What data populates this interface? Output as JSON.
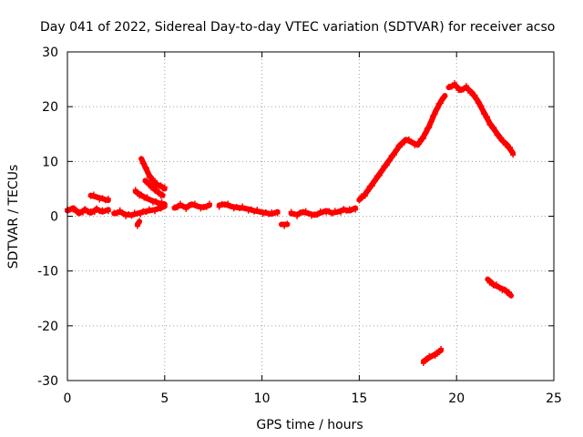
{
  "chart_data": {
    "type": "scatter",
    "title": "Day 041 of 2022, Sidereal Day-to-day VTEC variation (SDTVAR) for receiver acso",
    "xlabel": "GPS time / hours",
    "ylabel": "SDTVAR / TECUs",
    "xlim": [
      0,
      25
    ],
    "ylim": [
      -30,
      30
    ],
    "grid": true,
    "x_ticks": [
      0,
      5,
      10,
      15,
      20,
      25
    ],
    "y_ticks": [
      -30,
      -20,
      -10,
      0,
      10,
      20,
      30
    ],
    "x_tick_labels": [
      "0",
      "5",
      "10",
      "15",
      "20",
      "25"
    ],
    "y_tick_labels": [
      "-30",
      "-20",
      "-10",
      "0",
      "10",
      "20",
      "30"
    ],
    "series": [
      {
        "name": "SDTVAR",
        "color": "#ff0000",
        "marker": "plus",
        "segments": [
          {
            "x": [
              0.0,
              0.3,
              0.6,
              0.9,
              1.2,
              1.5,
              1.8,
              2.1
            ],
            "y": [
              1.0,
              1.5,
              0.5,
              1.2,
              0.6,
              1.3,
              0.8,
              1.2
            ]
          },
          {
            "x": [
              1.2,
              1.5,
              1.8,
              2.1
            ],
            "y": [
              3.8,
              3.5,
              3.2,
              2.9
            ]
          },
          {
            "x": [
              2.4,
              2.7,
              3.0,
              3.3,
              3.6,
              3.9,
              4.2,
              4.5,
              4.8,
              5.0
            ],
            "y": [
              0.5,
              0.8,
              0.3,
              0.2,
              0.5,
              0.8,
              1.0,
              1.2,
              1.5,
              1.8
            ]
          },
          {
            "x": [
              3.6,
              3.7
            ],
            "y": [
              -1.5,
              -1.0
            ]
          },
          {
            "x": [
              3.8,
              4.0,
              4.2,
              4.4,
              4.6,
              4.8,
              5.0
            ],
            "y": [
              10.5,
              9.0,
              7.5,
              6.5,
              5.8,
              5.5,
              5.0
            ]
          },
          {
            "x": [
              3.5,
              3.8,
              4.1,
              4.4,
              4.7,
              5.0
            ],
            "y": [
              4.5,
              3.8,
              3.2,
              2.8,
              2.4,
              2.2
            ]
          },
          {
            "x": [
              4.0,
              4.3,
              4.6,
              4.9
            ],
            "y": [
              6.5,
              5.5,
              4.5,
              3.8
            ]
          },
          {
            "x": [
              5.5,
              5.8,
              6.1,
              6.4,
              6.7,
              7.0,
              7.3
            ],
            "y": [
              1.5,
              2.0,
              1.6,
              2.2,
              1.8,
              1.6,
              2.0
            ]
          },
          {
            "x": [
              7.8,
              8.1,
              8.4,
              8.7,
              9.0,
              9.3,
              9.6,
              9.9,
              10.2,
              10.5,
              10.8
            ],
            "y": [
              2.0,
              2.2,
              1.8,
              1.6,
              1.5,
              1.3,
              1.0,
              0.8,
              0.6,
              0.4,
              0.8
            ]
          },
          {
            "x": [
              11.0,
              11.3
            ],
            "y": [
              -1.5,
              -1.5
            ]
          },
          {
            "x": [
              11.5,
              11.8,
              12.1,
              12.4,
              12.7,
              13.0,
              13.3,
              13.6,
              13.9,
              14.2,
              14.5,
              14.8
            ],
            "y": [
              0.5,
              0.3,
              0.8,
              0.5,
              0.2,
              0.6,
              1.0,
              0.6,
              0.8,
              1.2,
              1.0,
              1.5
            ]
          },
          {
            "x": [
              15.0,
              15.3,
              15.6,
              15.9,
              16.2,
              16.5,
              16.8,
              17.1,
              17.4,
              17.7,
              18.0,
              18.3,
              18.6,
              18.9,
              19.2,
              19.4
            ],
            "y": [
              3.0,
              4.0,
              5.5,
              7.0,
              8.5,
              10.0,
              11.5,
              13.0,
              14.0,
              13.5,
              13.0,
              14.5,
              16.5,
              19.0,
              21.0,
              22.0
            ]
          },
          {
            "x": [
              19.6,
              19.9,
              20.2,
              20.5,
              20.8,
              21.1,
              21.4,
              21.7,
              22.0,
              22.3,
              22.6,
              22.9
            ],
            "y": [
              23.5,
              24.0,
              23.0,
              23.5,
              22.5,
              21.0,
              19.0,
              17.0,
              15.5,
              14.0,
              13.0,
              11.5
            ]
          },
          {
            "x": [
              18.3,
              18.6,
              18.9,
              19.2
            ],
            "y": [
              -26.5,
              -25.8,
              -25.2,
              -24.5
            ]
          },
          {
            "x": [
              21.6,
              21.9,
              22.2,
              22.5,
              22.8
            ],
            "y": [
              -11.5,
              -12.5,
              -13.0,
              -13.5,
              -14.5
            ]
          }
        ]
      }
    ]
  }
}
